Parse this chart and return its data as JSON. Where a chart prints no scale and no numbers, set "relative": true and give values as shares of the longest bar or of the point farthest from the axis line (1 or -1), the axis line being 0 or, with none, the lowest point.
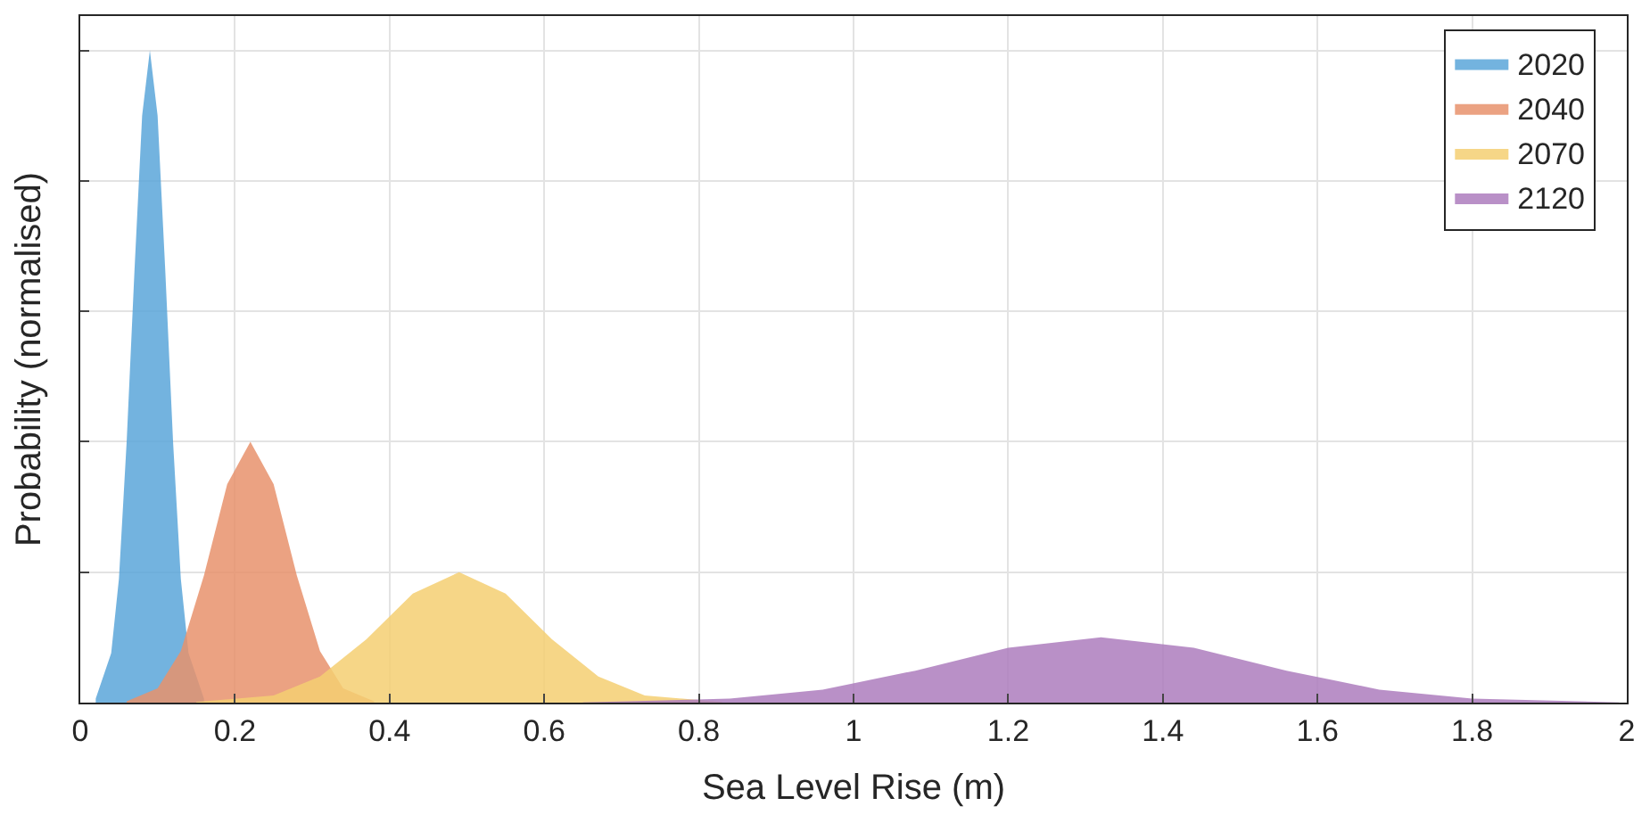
{
  "chart_data": {
    "type": "area",
    "relative": true,
    "xlabel": "Sea Level Rise (m)",
    "ylabel": "Probability (normalised)",
    "xlim": [
      0,
      2
    ],
    "xticks": [
      0,
      0.2,
      0.4,
      0.6,
      0.8,
      1,
      1.2,
      1.4,
      1.6,
      1.8,
      2
    ],
    "grid": true,
    "legend": "top right",
    "series": [
      {
        "name": "2020",
        "color": "#5aa6d9",
        "x": [
          0.02,
          0.04,
          0.05,
          0.06,
          0.07,
          0.08,
          0.09,
          0.1,
          0.11,
          0.12,
          0.13,
          0.14,
          0.16
        ],
        "values": [
          0.006,
          0.076,
          0.19,
          0.4,
          0.66,
          0.9,
          1,
          0.9,
          0.66,
          0.4,
          0.19,
          0.076,
          0.006
        ]
      },
      {
        "name": "2040",
        "color": "#e8926c",
        "x": [
          0.06,
          0.1,
          0.13,
          0.16,
          0.19,
          0.22,
          0.25,
          0.28,
          0.31,
          0.34,
          0.38
        ],
        "values": [
          0.002,
          0.022,
          0.079,
          0.195,
          0.335,
          0.4,
          0.335,
          0.195,
          0.079,
          0.022,
          0.002
        ]
      },
      {
        "name": "2070",
        "color": "#f4cf72",
        "x": [
          0.15,
          0.25,
          0.31,
          0.37,
          0.43,
          0.49,
          0.55,
          0.61,
          0.67,
          0.73,
          0.83
        ],
        "values": [
          0.001,
          0.011,
          0.04,
          0.097,
          0.167,
          0.2,
          0.167,
          0.097,
          0.04,
          0.011,
          0.001
        ]
      },
      {
        "name": "2120",
        "color": "#ad7cbd",
        "x": [
          0.65,
          0.84,
          0.96,
          1.08,
          1.2,
          1.32,
          1.44,
          1.56,
          1.68,
          1.8,
          1.99
        ],
        "values": [
          0.0004,
          0.006,
          0.02,
          0.049,
          0.084,
          0.1,
          0.084,
          0.049,
          0.02,
          0.006,
          0.0004
        ]
      }
    ]
  }
}
